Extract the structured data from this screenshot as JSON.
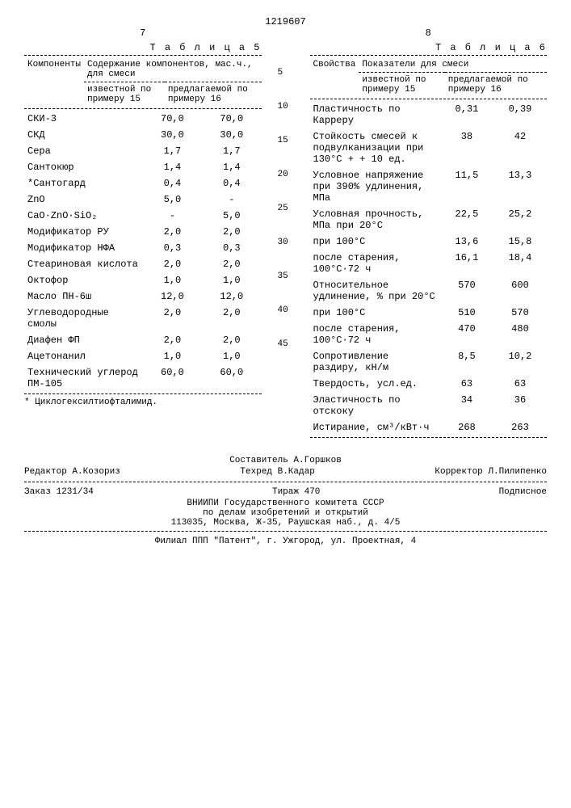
{
  "doc_number": "1219607",
  "left_page": "7",
  "right_page": "8",
  "table5": {
    "title": "Т а б л и ц а  5",
    "header_main": "Компоненты",
    "header_group": "Содержание компонентов, мас.ч., для смеси",
    "col1": "известной по примеру 15",
    "col2": "предлагаемой по примеру 16",
    "rows": [
      {
        "label": "СКИ-3",
        "v1": "70,0",
        "v2": "70,0"
      },
      {
        "label": "СКД",
        "v1": "30,0",
        "v2": "30,0"
      },
      {
        "label": "Сера",
        "v1": "1,7",
        "v2": "1,7"
      },
      {
        "label": "Сантокюр",
        "v1": "1,4",
        "v2": "1,4"
      },
      {
        "label": "*Сантогард",
        "v1": "0,4",
        "v2": "0,4"
      },
      {
        "label": "ZnO",
        "v1": "5,0",
        "v2": "-"
      },
      {
        "label": "CaO·ZnO·SiO₂",
        "v1": "-",
        "v2": "5,0"
      },
      {
        "label": "Модификатор РУ",
        "v1": "2,0",
        "v2": "2,0"
      },
      {
        "label": "Модификатор НФА",
        "v1": "0,3",
        "v2": "0,3"
      },
      {
        "label": "Стеариновая кислота",
        "v1": "2,0",
        "v2": "2,0"
      },
      {
        "label": "Октофор",
        "v1": "1,0",
        "v2": "1,0"
      },
      {
        "label": "Масло ПН-6ш",
        "v1": "12,0",
        "v2": "12,0"
      },
      {
        "label": "Углеводородные смолы",
        "v1": "2,0",
        "v2": "2,0"
      },
      {
        "label": "Диафен ФП",
        "v1": "2,0",
        "v2": "2,0"
      },
      {
        "label": "Ацетонанил",
        "v1": "1,0",
        "v2": "1,0"
      },
      {
        "label": "Технический углерод ПМ-105",
        "v1": "60,0",
        "v2": "60,0"
      }
    ],
    "footnote": "* Циклогексилтиофталимид."
  },
  "table6": {
    "title": "Т а б л и ц а  6",
    "header_main": "Свойства",
    "header_group": "Показатели для смеси",
    "col1": "известной по примеру 15",
    "col2": "предлагаемой по примеру 16",
    "rows": [
      {
        "label": "Пластичность по Карреру",
        "v1": "0,31",
        "v2": "0,39"
      },
      {
        "label": "Стойкость смесей к подвулканизации при 130°С + + 10 ед.",
        "v1": "38",
        "v2": "42"
      },
      {
        "label": "Условное напряжение при 390% удлинения, МПа",
        "v1": "11,5",
        "v2": "13,3"
      },
      {
        "label": "Условная прочность, МПа при 20°С",
        "v1": "22,5",
        "v2": "25,2"
      },
      {
        "label": "при 100°С",
        "v1": "13,6",
        "v2": "15,8"
      },
      {
        "label": "после старения, 100°С·72 ч",
        "v1": "16,1",
        "v2": "18,4"
      },
      {
        "label": "Относительное удлинение, % при 20°С",
        "v1": "570",
        "v2": "600"
      },
      {
        "label": "при 100°С",
        "v1": "510",
        "v2": "570"
      },
      {
        "label": "после старения, 100°С·72 ч",
        "v1": "470",
        "v2": "480"
      },
      {
        "label": "Сопротивление раздиру, кН/м",
        "v1": "8,5",
        "v2": "10,2"
      },
      {
        "label": "Твердость, усл.ед.",
        "v1": "63",
        "v2": "63"
      },
      {
        "label": "Эластичность по отскоку",
        "v1": "34",
        "v2": "36"
      },
      {
        "label": "Истирание, см³/кВт·ч",
        "v1": "268",
        "v2": "263"
      }
    ]
  },
  "line_markers": [
    "5",
    "10",
    "15",
    "20",
    "25",
    "30",
    "35",
    "40",
    "45"
  ],
  "footer": {
    "composer": "Составитель А.Горшков",
    "editor": "Редактор А.Козориз",
    "tech": "Техред В.Кадар",
    "corrector": "Корректор Л.Пилипенко",
    "order": "Заказ 1231/34",
    "tirazh": "Тираж 470",
    "subscribed": "Подписное",
    "org1": "ВНИИПИ Государственного комитета СССР",
    "org2": "по делам изобретений и открытий",
    "addr1": "113035, Москва, Ж-35, Раушская наб., д. 4/5",
    "addr2": "Филиал ППП \"Патент\", г. Ужгород, ул. Проектная, 4"
  }
}
